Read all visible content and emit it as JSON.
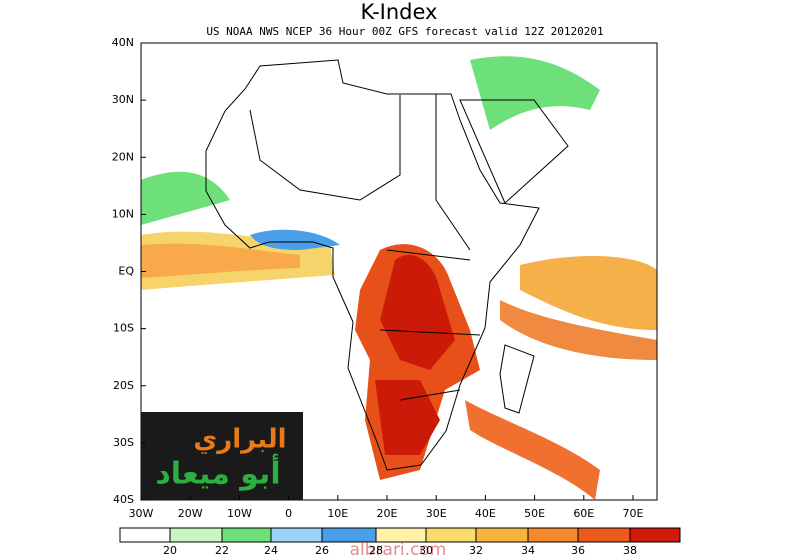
{
  "header": {
    "title": "K-Index",
    "subtitle": "US NOAA NWS NCEP 36 Hour 00Z GFS forecast valid 12Z 20120201"
  },
  "map": {
    "lat_labels": [
      "40N",
      "30N",
      "20N",
      "10N",
      "EQ",
      "10S",
      "20S",
      "30S",
      "40S"
    ],
    "lon_labels": [
      "30W",
      "20W",
      "10W",
      "0",
      "10E",
      "20E",
      "30E",
      "40E",
      "50E",
      "60E",
      "70E"
    ]
  },
  "colorbar": {
    "labels": [
      "20",
      "22",
      "24",
      "26",
      "28",
      "30",
      "32",
      "34",
      "36",
      "38"
    ]
  },
  "logo": {
    "line1": "البراري",
    "line2": "أبو ميعاد"
  },
  "watermark": "albrari.com"
}
